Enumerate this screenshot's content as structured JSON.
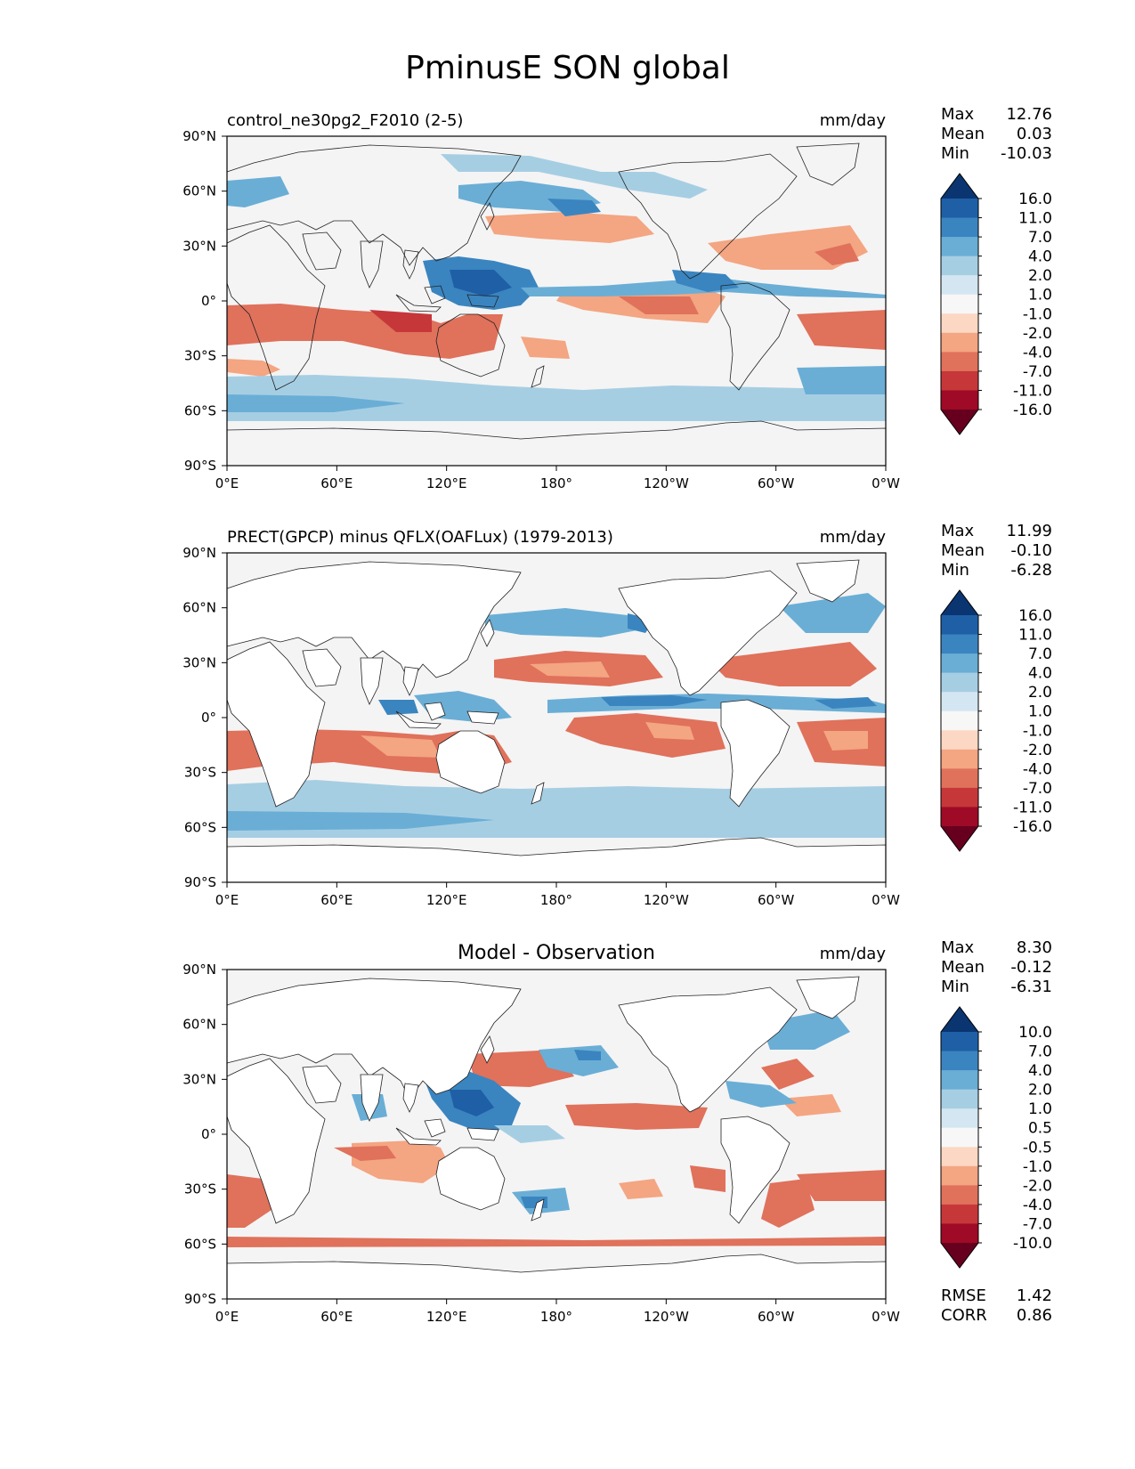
{
  "title": "PminusE SON global",
  "x_ticks": [
    "0°E",
    "60°E",
    "120°E",
    "180°",
    "120°W",
    "60°W",
    "0°W"
  ],
  "y_ticks": [
    "90°N",
    "60°N",
    "30°N",
    "0°",
    "30°S",
    "60°S",
    "90°S"
  ],
  "units": "mm/day",
  "palette": {
    "ocean_background": "#f4f4f4",
    "land": "#ffffff",
    "coast": "#222222",
    "colorbar_colors": [
      "#67001f",
      "#9f0a26",
      "#c6373a",
      "#e0715b",
      "#f4a582",
      "#fbd7c4",
      "#f7f7f7",
      "#d4e6f1",
      "#a6cee3",
      "#6aaed6",
      "#3a85c0",
      "#1f5fa6",
      "#0a3570"
    ]
  },
  "panels": [
    {
      "id": "model",
      "left_title": "control_ne30pg2_F2010 (2-5)",
      "center_title": "",
      "units": "mm/day",
      "stats": [
        {
          "label": "Max",
          "value": "12.76"
        },
        {
          "label": "Mean",
          "value": "0.03"
        },
        {
          "label": "Min",
          "value": "-10.03"
        }
      ],
      "colorbar_labels": [
        "16.0",
        "11.0",
        "7.0",
        "4.0",
        "2.0",
        "1.0",
        "-1.0",
        "-2.0",
        "-4.0",
        "-7.0",
        "-11.0",
        "-16.0"
      ],
      "metrics": []
    },
    {
      "id": "obs",
      "left_title": "PRECT(GPCP) minus QFLX(OAFLux) (1979-2013)",
      "center_title": "",
      "units": "mm/day",
      "stats": [
        {
          "label": "Max",
          "value": "11.99"
        },
        {
          "label": "Mean",
          "value": "-0.10"
        },
        {
          "label": "Min",
          "value": "-6.28"
        }
      ],
      "colorbar_labels": [
        "16.0",
        "11.0",
        "7.0",
        "4.0",
        "2.0",
        "1.0",
        "-1.0",
        "-2.0",
        "-4.0",
        "-7.0",
        "-11.0",
        "-16.0"
      ],
      "metrics": []
    },
    {
      "id": "diff",
      "left_title": "",
      "center_title": "Model - Observation",
      "units": "mm/day",
      "stats": [
        {
          "label": "Max",
          "value": "8.30"
        },
        {
          "label": "Mean",
          "value": "-0.12"
        },
        {
          "label": "Min",
          "value": "-6.31"
        }
      ],
      "colorbar_labels": [
        "10.0",
        "7.0",
        "4.0",
        "2.0",
        "1.0",
        "0.5",
        "-0.5",
        "-1.0",
        "-2.0",
        "-4.0",
        "-7.0",
        "-10.0"
      ],
      "metrics": [
        {
          "label": "RMSE",
          "value": "1.42"
        },
        {
          "label": "CORR",
          "value": "0.86"
        }
      ]
    }
  ]
}
